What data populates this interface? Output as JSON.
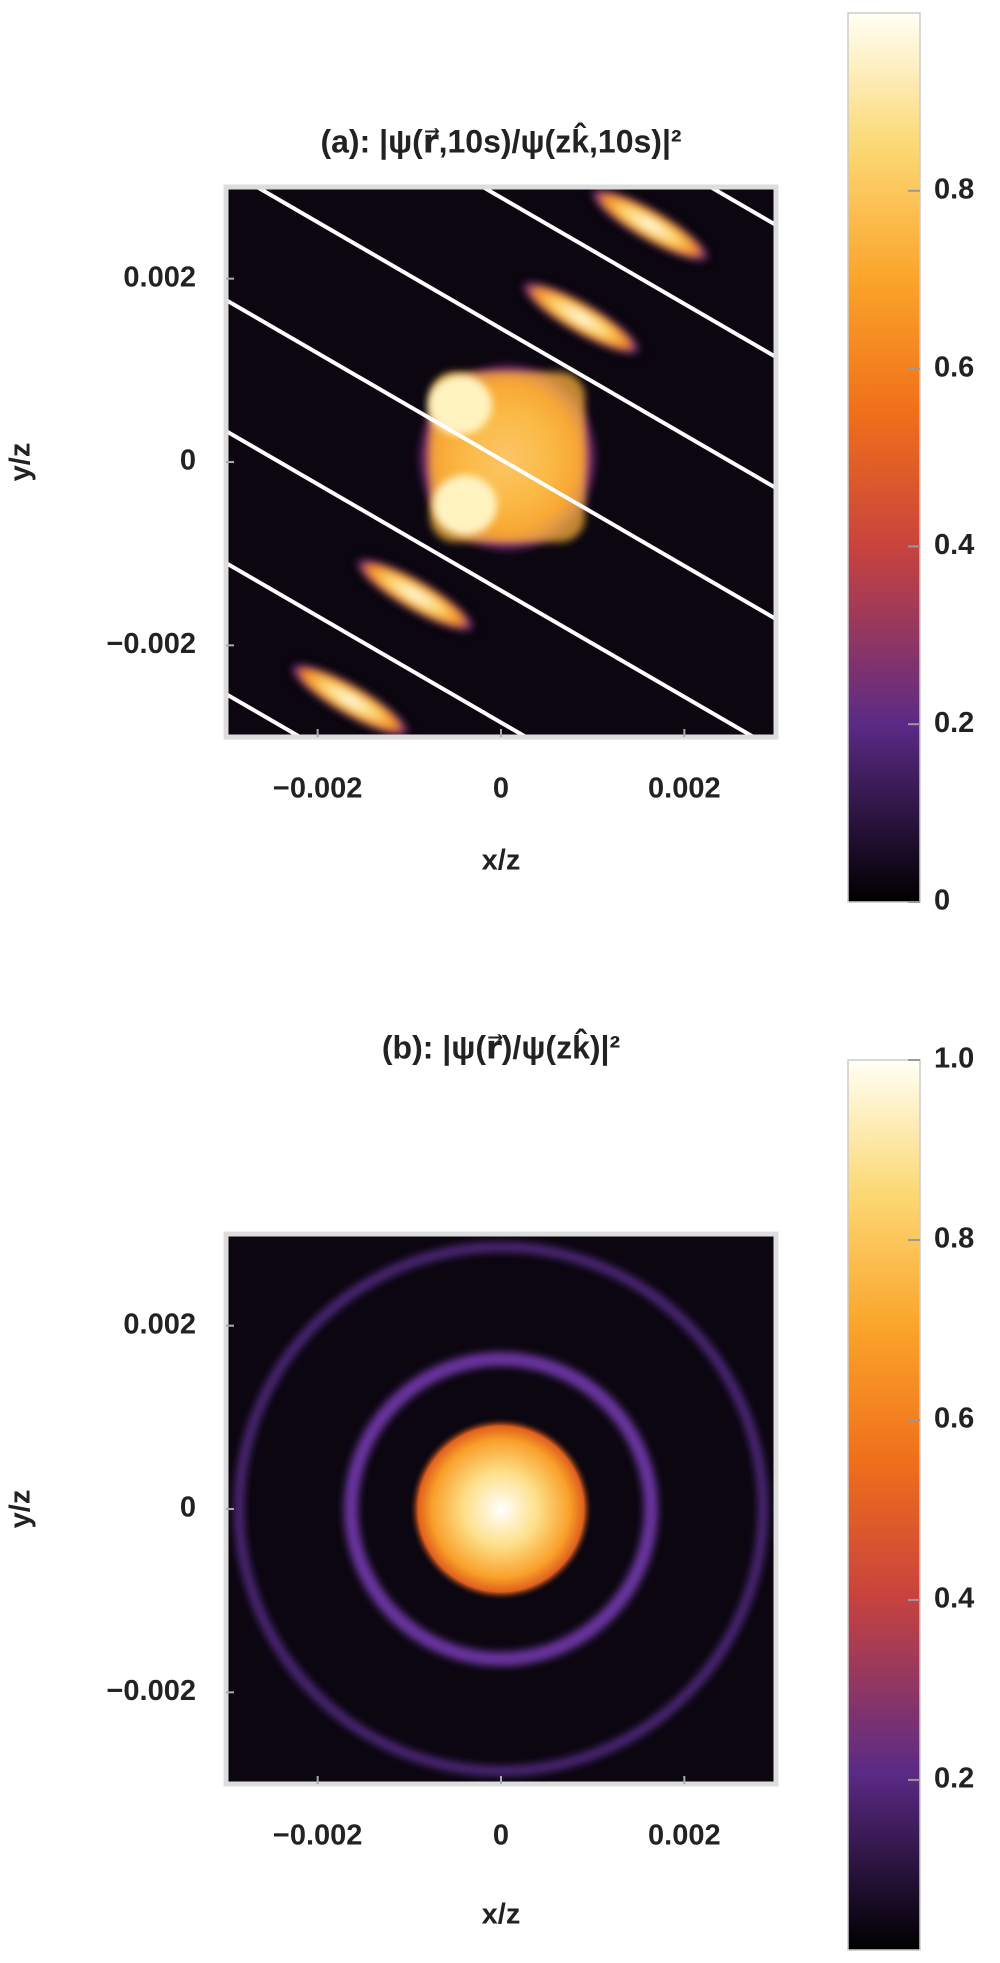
{
  "chart_data": [
    {
      "type": "density",
      "title": "(a): |ψ(r⃗,10s)/ψ(zk̂,10s)|²",
      "xlabel": "x/z",
      "ylabel": "y/z",
      "xlim": [
        -0.003,
        0.003
      ],
      "ylim": [
        -0.003,
        0.003
      ],
      "xticks": [
        {
          "value": -0.002,
          "label": "−0.002"
        },
        0,
        0.002
      ],
      "yticks": [
        {
          "value": -0.002,
          "label": "−0.002"
        },
        0,
        0.002
      ],
      "clim": [
        0,
        1
      ],
      "cticks": [
        0,
        0.2,
        0.4,
        0.6,
        0.8
      ],
      "colorscale": [
        [
          0,
          "#000000"
        ],
        [
          0.2,
          "#5b2a86"
        ],
        [
          0.4,
          "#c9433d"
        ],
        [
          0.55,
          "#f06f1a"
        ],
        [
          0.7,
          "#fba42a"
        ],
        [
          0.85,
          "#fcd874"
        ],
        [
          1,
          "#fffff5"
        ]
      ]
    },
    {
      "type": "density",
      "title": "(b): |ψ(r⃗)/ψ(zk̂)|²",
      "xlabel": "x/z",
      "ylabel": "y/z",
      "xlim": [
        -0.003,
        0.003
      ],
      "ylim": [
        -0.003,
        0.003
      ],
      "xticks": [
        {
          "value": -0.002,
          "label": "−0.002"
        },
        0,
        0.002
      ],
      "yticks": [
        {
          "value": -0.002,
          "label": "−0.002"
        },
        0,
        0.002
      ],
      "clim": [
        0.011,
        1
      ],
      "cticks": [
        0.2,
        0.4,
        0.6,
        0.8,
        {
          "value": 1,
          "label": "1.0"
        }
      ],
      "colorscale": [
        [
          0,
          "#000000"
        ],
        [
          0.2,
          "#5b2a86"
        ],
        [
          0.4,
          "#c9433d"
        ],
        [
          0.55,
          "#f06f1a"
        ],
        [
          0.7,
          "#fba42a"
        ],
        [
          0.85,
          "#fcd874"
        ],
        [
          1,
          "#fffff5"
        ]
      ]
    }
  ]
}
